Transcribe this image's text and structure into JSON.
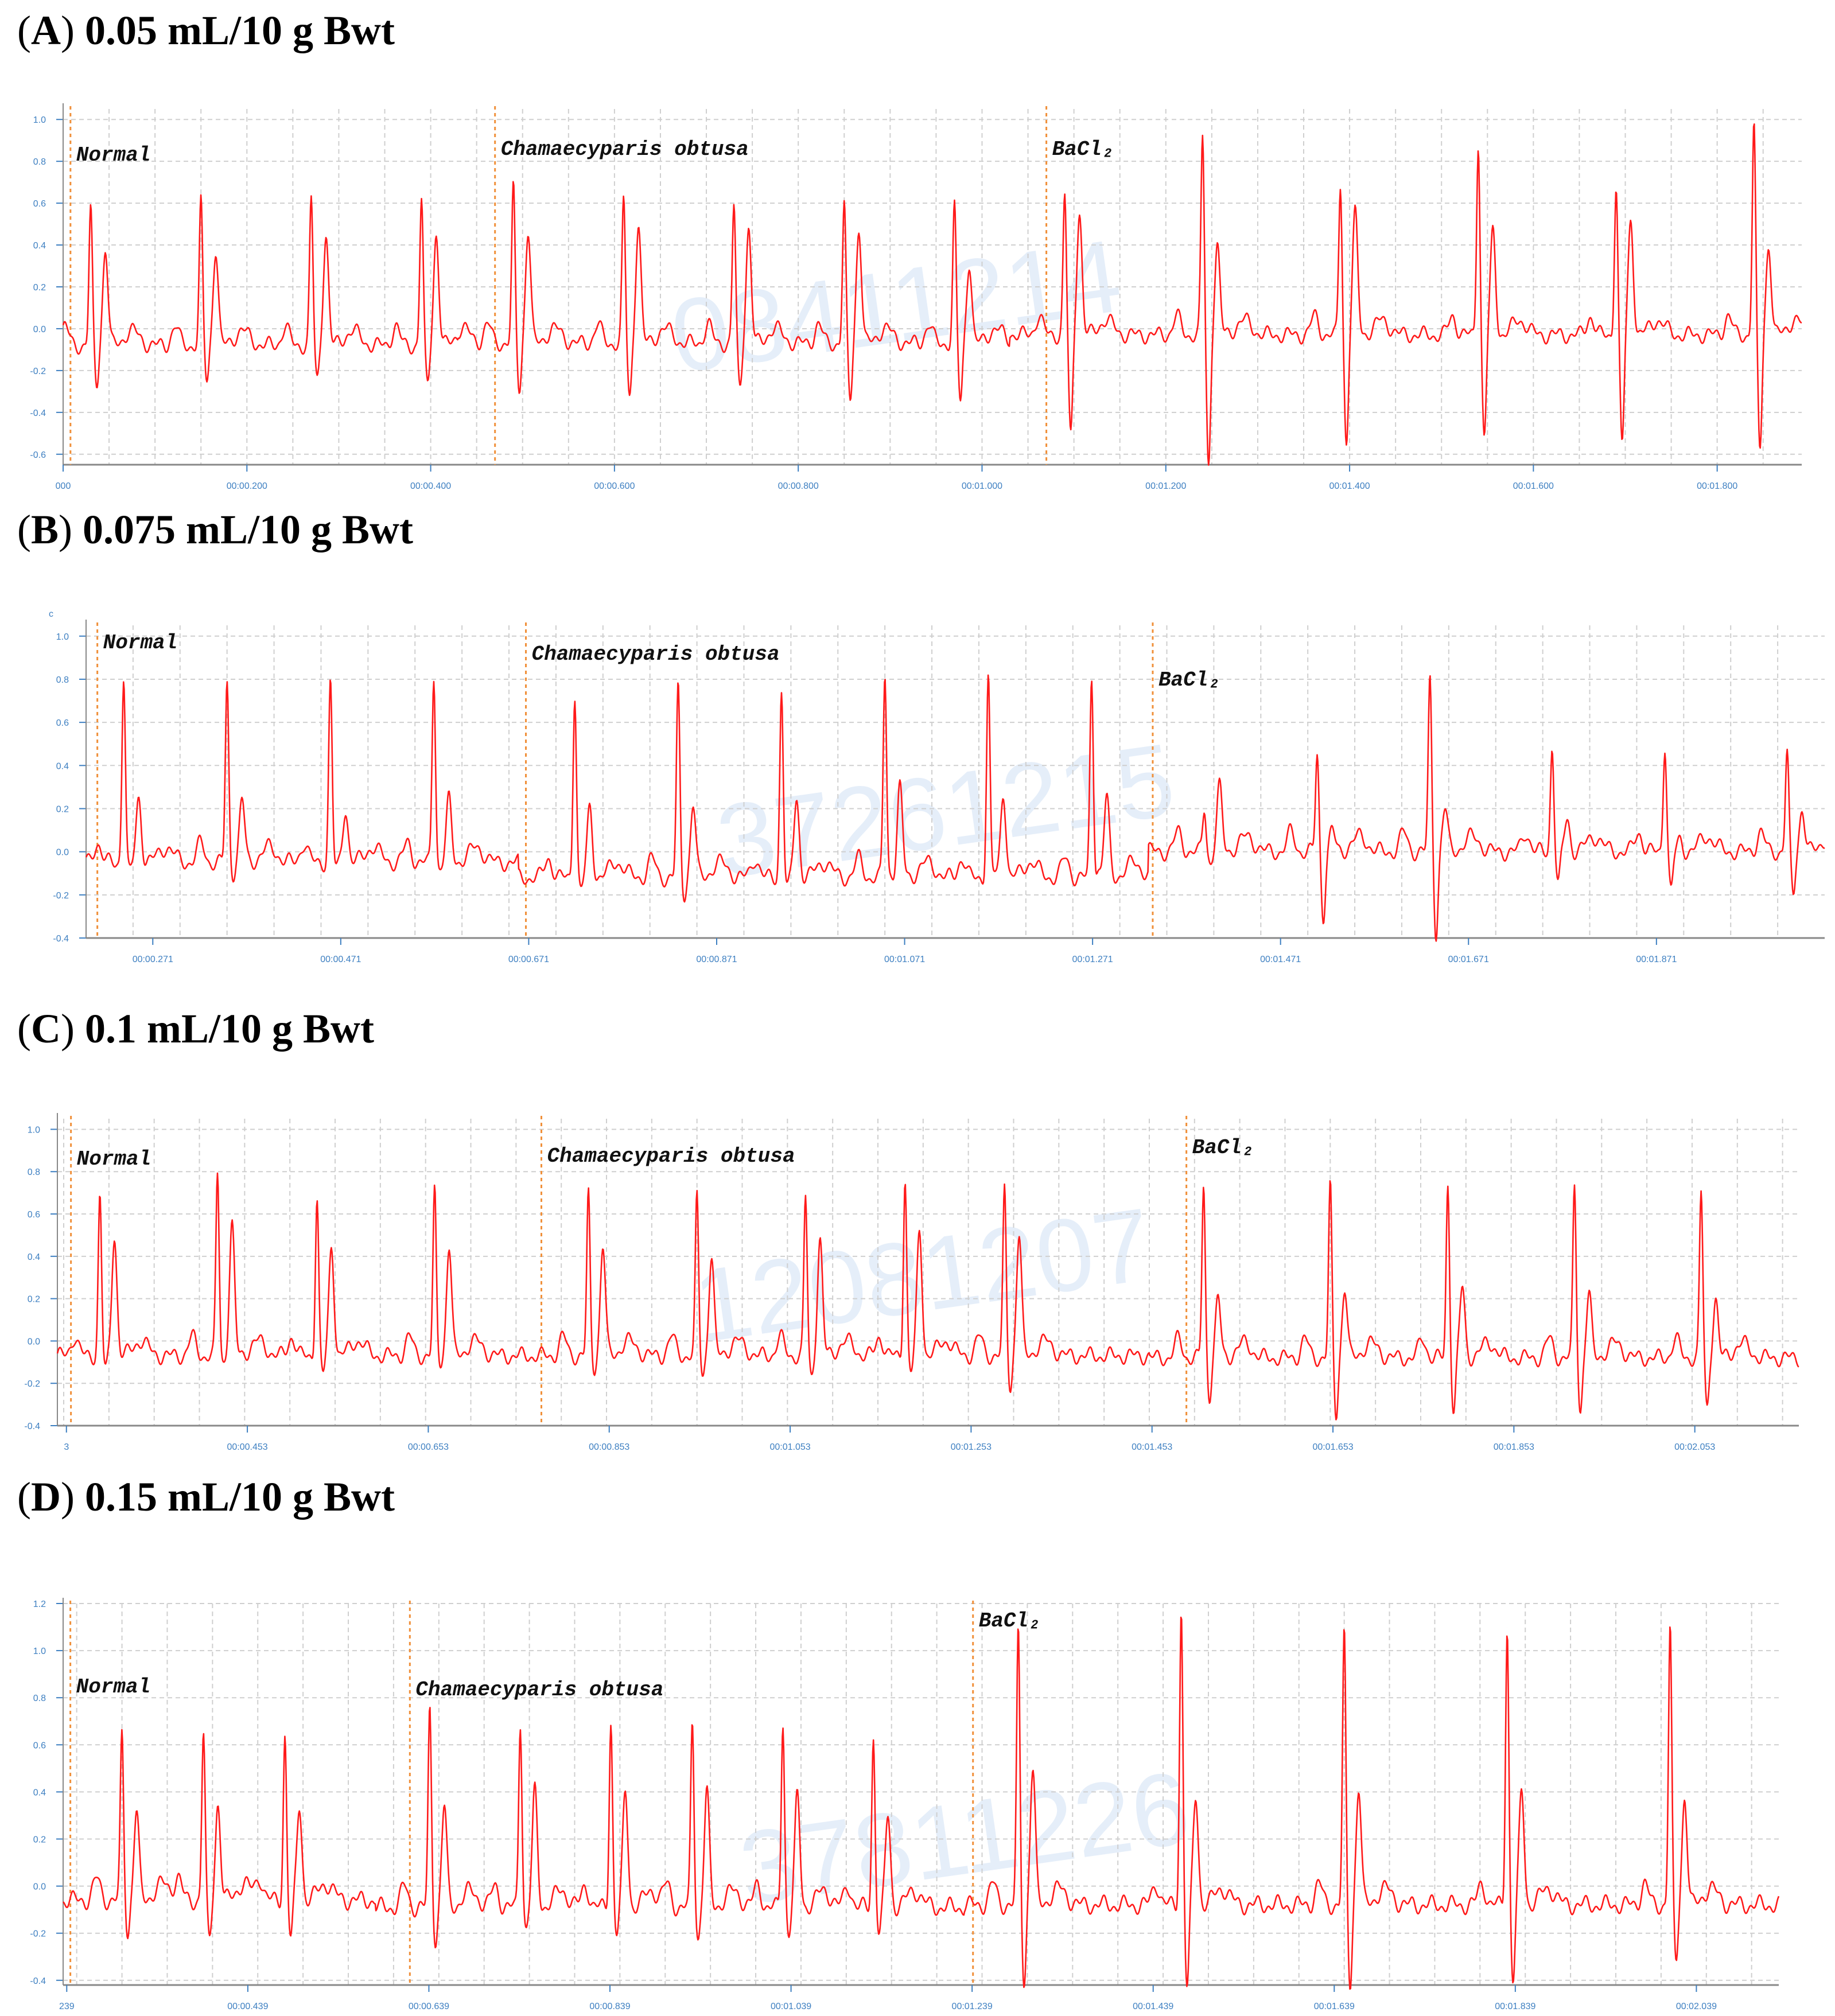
{
  "panels": [
    {
      "letter": "A",
      "title": "0.05 mL/10 g Bwt"
    },
    {
      "letter": "B",
      "title": "0.075 mL/10 g Bwt"
    },
    {
      "letter": "C",
      "title": "0.1 mL/10 g Bwt"
    },
    {
      "letter": "D",
      "title": "0.15 mL/10 g Bwt"
    }
  ],
  "colors": {
    "trace": "#ff1a1a",
    "marker": "#f0903a",
    "grid": "#cfcfcf",
    "tick": "#3d7fc1",
    "watermark": "#dde9f7"
  },
  "chart_data": [
    {
      "type": "line",
      "title": "(A) 0.05 mL/10 g Bwt",
      "ylim": [
        -0.65,
        1.05
      ],
      "yticks": [
        -0.6,
        -0.4,
        -0.2,
        0.0,
        0.2,
        0.4,
        0.6,
        0.8,
        1.0
      ],
      "xlim": [
        0,
        1.892
      ],
      "xticks": [
        {
          "t": 0,
          "label": "000"
        },
        {
          "t": 0.2,
          "label": "00:00.200"
        },
        {
          "t": 0.4,
          "label": "00:00.400"
        },
        {
          "t": 0.6,
          "label": "00:00.600"
        },
        {
          "t": 0.8,
          "label": "00:00.800"
        },
        {
          "t": 1.0,
          "label": "00:01.000"
        },
        {
          "t": 1.2,
          "label": "00:01.200"
        },
        {
          "t": 1.4,
          "label": "00:01.400"
        },
        {
          "t": 1.6,
          "label": "00:01.600"
        },
        {
          "t": 1.8,
          "label": "00:01.800"
        }
      ],
      "grid": true,
      "markers": [
        {
          "t": 0.008,
          "label": "Normal"
        },
        {
          "t": 0.47,
          "label": "Chamaecyparis obtusa"
        },
        {
          "t": 1.07,
          "label": "BaCl₂"
        }
      ],
      "watermark": "08411214",
      "series": [
        {
          "phase": "Normal",
          "beats_t": [
            0.03,
            0.15,
            0.27,
            0.39
          ],
          "r_peak": [
            0.57,
            0.6,
            0.62,
            0.62
          ],
          "s_trough": [
            -0.27,
            -0.25,
            -0.25,
            -0.27
          ],
          "t_wave": [
            0.38,
            0.38,
            0.45,
            0.45
          ],
          "baseline": -0.08
        },
        {
          "phase": "Chamaecyparis obtusa",
          "beats_t": [
            0.49,
            0.61,
            0.73,
            0.85,
            0.97
          ],
          "r_peak": [
            0.67,
            0.61,
            0.59,
            0.59,
            0.58
          ],
          "s_trough": [
            -0.29,
            -0.33,
            -0.29,
            -0.34,
            -0.35
          ],
          "t_wave": [
            0.47,
            0.5,
            0.48,
            0.48,
            0.32
          ],
          "baseline": -0.07
        },
        {
          "phase": "BaCl₂",
          "beats_t": [
            1.09,
            1.24,
            1.39,
            1.54,
            1.69,
            1.84
          ],
          "r_peak": [
            0.64,
            0.92,
            0.69,
            0.9,
            0.69,
            0.98
          ],
          "s_trough": [
            -0.52,
            -0.66,
            -0.55,
            -0.52,
            -0.56,
            -0.58
          ],
          "t_wave": [
            0.56,
            0.4,
            0.55,
            0.46,
            0.52,
            0.4
          ],
          "baseline": -0.03
        }
      ]
    },
    {
      "type": "line",
      "title": "(B) 0.075 mL/10 g Bwt",
      "ylim": [
        -0.4,
        1.05
      ],
      "yticks": [
        -0.4,
        -0.2,
        0.0,
        0.2,
        0.4,
        0.6,
        0.8,
        1.0
      ],
      "xlim": [
        0.2,
        2.05
      ],
      "xticks": [
        {
          "t": 0.271,
          "label": "00:00.271"
        },
        {
          "t": 0.471,
          "label": "00:00.471"
        },
        {
          "t": 0.671,
          "label": "00:00.671"
        },
        {
          "t": 0.871,
          "label": "00:00.871"
        },
        {
          "t": 1.071,
          "label": "00:01.071"
        },
        {
          "t": 1.271,
          "label": "00:01.271"
        },
        {
          "t": 1.471,
          "label": "00:01.471"
        },
        {
          "t": 1.671,
          "label": "00:01.671"
        },
        {
          "t": 1.871,
          "label": "00:01.871"
        }
      ],
      "grid": true,
      "markers": [
        {
          "t": 0.212,
          "label": "Normal"
        },
        {
          "t": 0.668,
          "label": "Chamaecyparis obtusa"
        },
        {
          "t": 1.335,
          "label": "BaCl₂"
        }
      ],
      "y_corner_label": "c",
      "watermark": "37261215",
      "series": [
        {
          "phase": "Normal",
          "beats_t": [
            0.24,
            0.35,
            0.46,
            0.57
          ],
          "r_peak": [
            0.82,
            0.78,
            0.79,
            0.82
          ],
          "s_trough": [
            -0.1,
            -0.1,
            -0.08,
            -0.08
          ],
          "t_wave": [
            0.25,
            0.24,
            0.2,
            0.24
          ],
          "baseline": -0.05
        },
        {
          "phase": "Chamaecyparis obtusa",
          "beats_t": [
            0.72,
            0.83,
            0.94,
            1.05,
            1.16,
            1.27
          ],
          "r_peak": [
            0.74,
            0.76,
            0.75,
            0.82,
            0.81,
            0.8
          ],
          "s_trough": [
            -0.18,
            -0.2,
            -0.17,
            -0.1,
            -0.1,
            -0.08
          ],
          "t_wave": [
            0.2,
            0.22,
            0.25,
            0.3,
            0.28,
            0.25
          ],
          "baseline": -0.12
        },
        {
          "phase": "BaCl₂",
          "beats_t": [
            1.39,
            1.51,
            1.63,
            1.76,
            1.88,
            2.01
          ],
          "r_peak": [
            0.2,
            0.45,
            0.8,
            0.49,
            0.5,
            0.46
          ],
          "s_trough": [
            -0.05,
            -0.3,
            -0.38,
            -0.15,
            -0.18,
            -0.2
          ],
          "t_wave": [
            0.3,
            0.1,
            0.2,
            0.15,
            0.05,
            0.2
          ],
          "baseline": 0.0
        }
      ]
    },
    {
      "type": "line",
      "title": "(C) 0.1 mL/10 g Bwt",
      "ylim": [
        -0.4,
        1.05
      ],
      "yticks": [
        -0.4,
        -0.2,
        0.0,
        0.2,
        0.4,
        0.6,
        0.8,
        1.0
      ],
      "xlim": [
        0.243,
        2.168
      ],
      "xticks": [
        {
          "t": 0.253,
          "label": "3"
        },
        {
          "t": 0.453,
          "label": "00:00.453"
        },
        {
          "t": 0.653,
          "label": "00:00.653"
        },
        {
          "t": 0.853,
          "label": "00:00.853"
        },
        {
          "t": 1.053,
          "label": "00:01.053"
        },
        {
          "t": 1.253,
          "label": "00:01.253"
        },
        {
          "t": 1.453,
          "label": "00:01.453"
        },
        {
          "t": 1.653,
          "label": "00:01.653"
        },
        {
          "t": 1.853,
          "label": "00:01.853"
        },
        {
          "t": 2.053,
          "label": "00:02.053"
        }
      ],
      "grid": true,
      "markers": [
        {
          "t": 0.258,
          "label": "Normal"
        },
        {
          "t": 0.778,
          "label": "Chamaecyparis obtusa"
        },
        {
          "t": 1.491,
          "label": "BaCl₂"
        }
      ],
      "watermark": "12081207",
      "series": [
        {
          "phase": "Normal",
          "beats_t": [
            0.29,
            0.42,
            0.53,
            0.66
          ],
          "r_peak": [
            0.69,
            0.79,
            0.68,
            0.7
          ],
          "s_trough": [
            -0.14,
            -0.1,
            -0.16,
            -0.1
          ],
          "t_wave": [
            0.5,
            0.55,
            0.45,
            0.45
          ],
          "baseline": -0.07
        },
        {
          "phase": "Chamaecyparis obtusa",
          "beats_t": [
            0.83,
            0.95,
            1.07,
            1.18,
            1.29
          ],
          "r_peak": [
            0.69,
            0.68,
            0.68,
            0.77,
            0.71
          ],
          "s_trough": [
            -0.13,
            -0.16,
            -0.17,
            -0.15,
            -0.22
          ],
          "t_wave": [
            0.45,
            0.4,
            0.48,
            0.52,
            0.5
          ],
          "baseline": -0.07
        },
        {
          "phase": "BaCl₂",
          "beats_t": [
            1.51,
            1.65,
            1.78,
            1.92,
            2.06
          ],
          "r_peak": [
            0.73,
            0.73,
            0.74,
            0.73,
            0.7
          ],
          "s_trough": [
            -0.26,
            -0.35,
            -0.33,
            -0.33,
            -0.32
          ],
          "t_wave": [
            0.2,
            0.25,
            0.25,
            0.22,
            0.2
          ],
          "baseline": -0.08
        }
      ]
    },
    {
      "type": "line",
      "title": "(D) 0.15 mL/10 g Bwt",
      "ylim": [
        -0.42,
        1.2
      ],
      "yticks": [
        -0.4,
        -0.2,
        0.0,
        0.2,
        0.4,
        0.6,
        0.8,
        1.0,
        1.2
      ],
      "ytick_labels": [
        "-0.4",
        "-0.2",
        "0.0",
        "0.2",
        "0.4",
        "0.6",
        "0.8",
        "1.0",
        "1.2"
      ],
      "xlim": [
        0.235,
        2.13
      ],
      "xticks": [
        {
          "t": 0.239,
          "label": "239"
        },
        {
          "t": 0.439,
          "label": "00:00.439"
        },
        {
          "t": 0.639,
          "label": "00:00.639"
        },
        {
          "t": 0.839,
          "label": "00:00.839"
        },
        {
          "t": 1.039,
          "label": "00:01.039"
        },
        {
          "t": 1.239,
          "label": "00:01.239"
        },
        {
          "t": 1.439,
          "label": "00:01.439"
        },
        {
          "t": 1.639,
          "label": "00:01.639"
        },
        {
          "t": 1.839,
          "label": "00:01.839"
        },
        {
          "t": 2.039,
          "label": "00:02.039"
        }
      ],
      "grid": true,
      "markers": [
        {
          "t": 0.243,
          "label": "Normal"
        },
        {
          "t": 0.618,
          "label": "Chamaecyparis obtusa"
        },
        {
          "t": 1.24,
          "label": "BaCl₂"
        }
      ],
      "watermark": "37811226",
      "series": [
        {
          "phase": "Normal",
          "beats_t": [
            0.3,
            0.39,
            0.48
          ],
          "r_peak": [
            0.64,
            0.65,
            0.64
          ],
          "s_trough": [
            -0.2,
            -0.23,
            -0.22
          ],
          "t_wave": [
            0.32,
            0.35,
            0.34
          ],
          "baseline": -0.06
        },
        {
          "phase": "Chamaecyparis obtusa",
          "beats_t": [
            0.64,
            0.74,
            0.84,
            0.93,
            1.03,
            1.13
          ],
          "r_peak": [
            0.75,
            0.7,
            0.7,
            0.7,
            0.7,
            0.63
          ],
          "s_trough": [
            -0.23,
            -0.18,
            -0.2,
            -0.22,
            -0.2,
            -0.2
          ],
          "t_wave": [
            0.34,
            0.4,
            0.4,
            0.4,
            0.38,
            0.3
          ],
          "baseline": -0.09
        },
        {
          "phase": "BaCl₂",
          "beats_t": [
            1.29,
            1.47,
            1.65,
            1.83,
            2.01
          ],
          "r_peak": [
            1.08,
            1.17,
            1.07,
            1.1,
            1.1
          ],
          "s_trough": [
            -0.41,
            -0.43,
            -0.42,
            -0.4,
            -0.32
          ],
          "t_wave": [
            0.5,
            0.38,
            0.42,
            0.4,
            0.38
          ],
          "baseline": -0.08
        }
      ]
    }
  ]
}
